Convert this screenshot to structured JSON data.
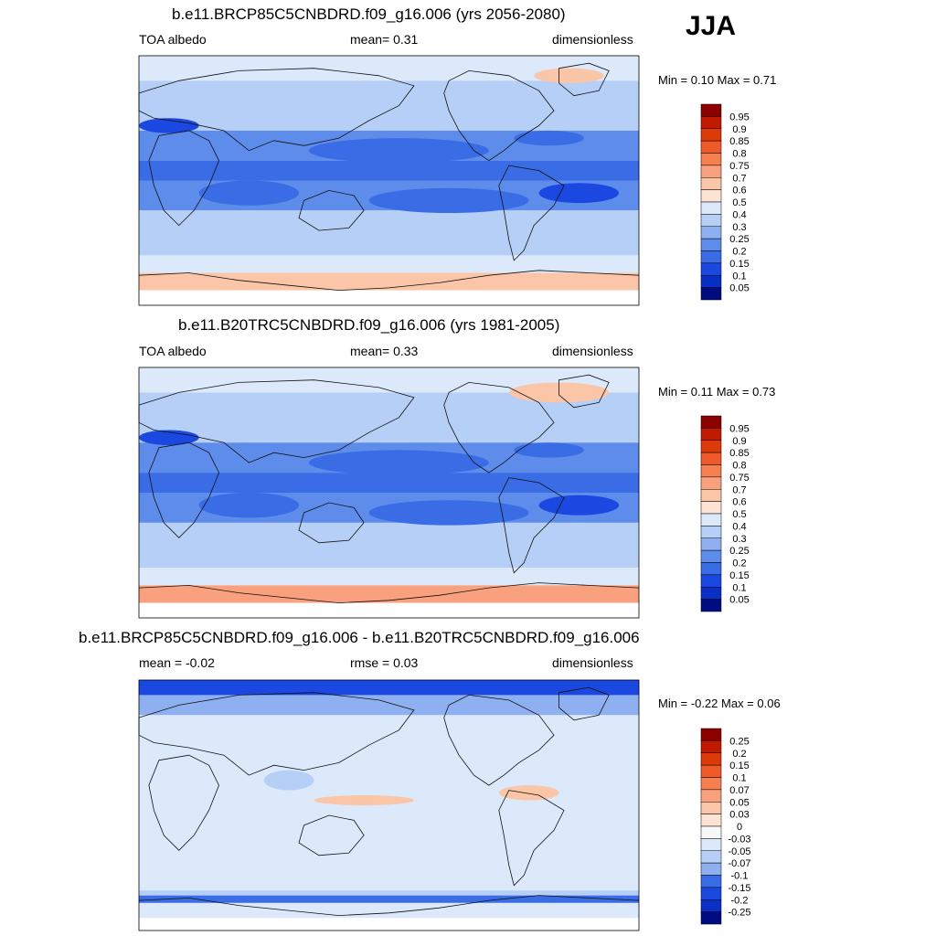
{
  "season": "JJA",
  "chart_data": [
    {
      "type": "heatmap",
      "title": "b.e11.BRCP85C5CNBDRD.f09_g16.006 (yrs 2056-2080)",
      "left_label": "TOA albedo",
      "center_label": "mean=   0.31",
      "right_label": "dimensionless",
      "min_max": "Min =   0.10 Max =   0.71",
      "min": 0.1,
      "max": 0.71,
      "mean": 0.31,
      "colorbar": {
        "levels": [
          "0.95",
          "0.9",
          "0.85",
          "0.8",
          "0.75",
          "0.7",
          "0.6",
          "0.5",
          "0.4",
          "0.3",
          "0.25",
          "0.2",
          "0.15",
          "0.1",
          "0.05"
        ],
        "colors": [
          "#8c0000",
          "#c21a00",
          "#dd3a0a",
          "#ee5a2a",
          "#f68050",
          "#f9a07e",
          "#fbc5a7",
          "#fde3d3",
          "#dce9fb",
          "#b6cff6",
          "#8fb0f0",
          "#5e8ceb",
          "#3a6ce6",
          "#1b48e0",
          "#0a2fc6",
          "#000d82"
        ]
      }
    },
    {
      "type": "heatmap",
      "title": "b.e11.B20TRC5CNBDRD.f09_g16.006 (yrs 1981-2005)",
      "left_label": "TOA albedo",
      "center_label": "mean=   0.33",
      "right_label": "dimensionless",
      "min_max": "Min =   0.11 Max =   0.73",
      "min": 0.11,
      "max": 0.73,
      "mean": 0.33,
      "colorbar": {
        "levels": [
          "0.95",
          "0.9",
          "0.85",
          "0.8",
          "0.75",
          "0.7",
          "0.6",
          "0.5",
          "0.4",
          "0.3",
          "0.25",
          "0.2",
          "0.15",
          "0.1",
          "0.05"
        ],
        "colors": [
          "#8c0000",
          "#c21a00",
          "#dd3a0a",
          "#ee5a2a",
          "#f68050",
          "#f9a07e",
          "#fbc5a7",
          "#fde3d3",
          "#dce9fb",
          "#b6cff6",
          "#8fb0f0",
          "#5e8ceb",
          "#3a6ce6",
          "#1b48e0",
          "#0a2fc6",
          "#000d82"
        ]
      }
    },
    {
      "type": "heatmap",
      "title": "b.e11.BRCP85C5CNBDRD.f09_g16.006 - b.e11.B20TRC5CNBDRD.f09_g16.006",
      "left_label": "mean =  -0.02",
      "center_label": "rmse =   0.03",
      "right_label": "dimensionless",
      "min_max": "Min =  -0.22 Max =   0.06",
      "min": -0.22,
      "max": 0.06,
      "mean": -0.02,
      "rmse": 0.03,
      "colorbar": {
        "levels": [
          "0.25",
          "0.2",
          "0.15",
          "0.1",
          "0.07",
          "0.05",
          "0.03",
          "0",
          "-0.03",
          "-0.05",
          "-0.07",
          "-0.1",
          "-0.15",
          "-0.2",
          "-0.25"
        ],
        "colors": [
          "#8c0000",
          "#c21a00",
          "#dd3a0a",
          "#ee5a2a",
          "#f68050",
          "#f9a07e",
          "#fbc5a7",
          "#fde3d3",
          "#f7f7f7",
          "#dce9fb",
          "#b6cff6",
          "#8fb0f0",
          "#3a6ce6",
          "#1b48e0",
          "#0a2fc6",
          "#000d82"
        ]
      }
    }
  ]
}
